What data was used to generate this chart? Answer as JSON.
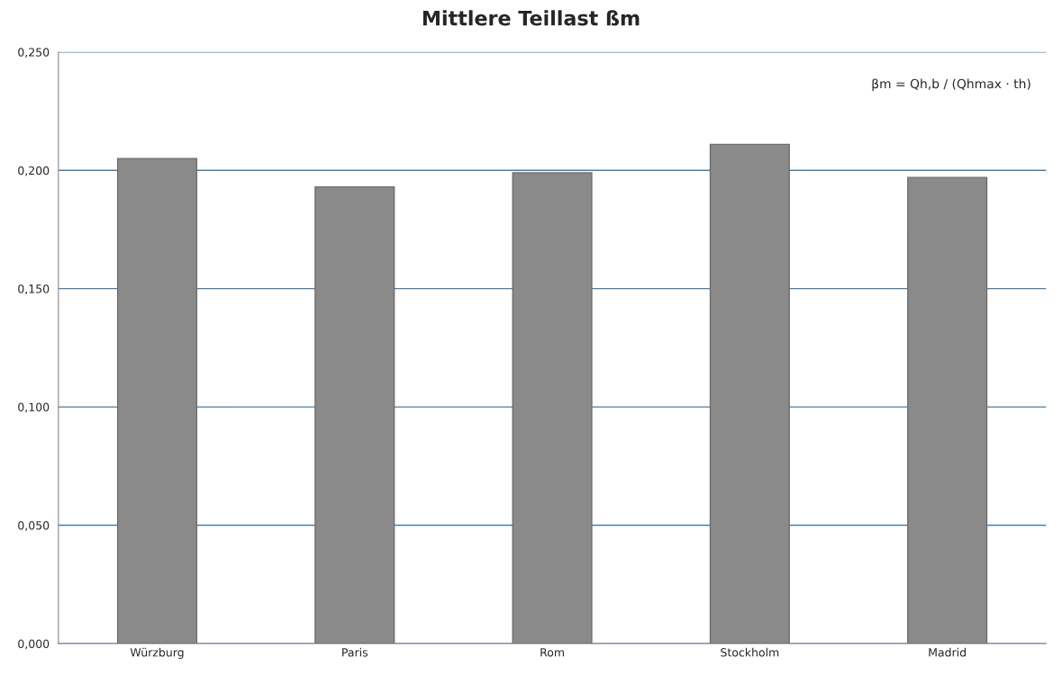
{
  "chart_data": {
    "type": "bar",
    "title": "Mittlere Teillast ßm",
    "categories": [
      "Würzburg",
      "Paris",
      "Rom",
      "Stockholm",
      "Madrid"
    ],
    "values": [
      0.205,
      0.193,
      0.199,
      0.211,
      0.197
    ],
    "color": "#8a8a8a",
    "ylim": [
      0,
      0.25
    ],
    "yticks": [
      {
        "value": 0,
        "label": "0,000"
      },
      {
        "value": 0.05,
        "label": "0,050"
      },
      {
        "value": 0.1,
        "label": "0,100"
      },
      {
        "value": 0.15,
        "label": "0,150"
      },
      {
        "value": 0.2,
        "label": "0,200"
      },
      {
        "value": 0.25,
        "label": "0,250"
      }
    ],
    "grid": "y",
    "annotations": [
      "βm = Qh,b / (Qhmax · th)"
    ]
  }
}
